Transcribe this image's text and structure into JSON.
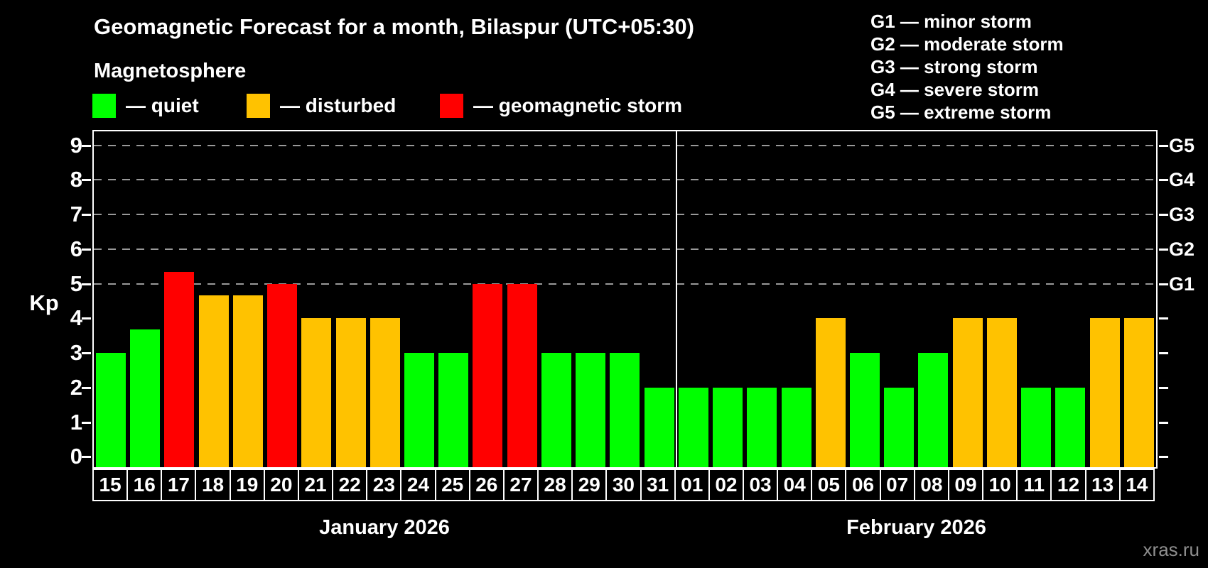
{
  "title": "Geomagnetic Forecast for a month, Bilaspur (UTC+05:30)",
  "subtitle": "Magnetosphere",
  "legend": [
    {
      "status": "quiet",
      "label": "— quiet"
    },
    {
      "status": "disturbed",
      "label": "— disturbed"
    },
    {
      "status": "storm",
      "label": "— geomagnetic storm"
    }
  ],
  "g_scale_legend": [
    "G1 — minor storm",
    "G2 — moderate storm",
    "G3 — strong storm",
    "G4 — severe storm",
    "G5 — extreme storm"
  ],
  "watermark": "xras.ru",
  "chart_data": {
    "type": "bar",
    "ylabel": "Kp",
    "ylim": [
      -0.3,
      9.4
    ],
    "yticks": [
      0,
      1,
      2,
      3,
      4,
      5,
      6,
      7,
      8,
      9
    ],
    "grid_on": true,
    "grid_levels": [
      {
        "kp": 5,
        "label": "G1"
      },
      {
        "kp": 6,
        "label": "G2"
      },
      {
        "kp": 7,
        "label": "G3"
      },
      {
        "kp": 8,
        "label": "G4"
      },
      {
        "kp": 9,
        "label": "G5"
      }
    ],
    "colors": {
      "quiet": "#00ff00",
      "disturbed": "#ffc200",
      "storm": "#ff0000",
      "grid": "#999999",
      "frame": "#ffffff",
      "watermark": "#8f8f8f"
    },
    "months": [
      {
        "label": "January 2026",
        "days": 17
      },
      {
        "label": "February 2026",
        "days": 14
      }
    ],
    "bars": [
      {
        "day": "15",
        "kp": 3,
        "status": "quiet"
      },
      {
        "day": "16",
        "kp": 3.67,
        "status": "quiet"
      },
      {
        "day": "17",
        "kp": 5.33,
        "status": "storm"
      },
      {
        "day": "18",
        "kp": 4.67,
        "status": "disturbed"
      },
      {
        "day": "19",
        "kp": 4.67,
        "status": "disturbed"
      },
      {
        "day": "20",
        "kp": 5,
        "status": "storm"
      },
      {
        "day": "21",
        "kp": 4,
        "status": "disturbed"
      },
      {
        "day": "22",
        "kp": 4,
        "status": "disturbed"
      },
      {
        "day": "23",
        "kp": 4,
        "status": "disturbed"
      },
      {
        "day": "24",
        "kp": 3,
        "status": "quiet"
      },
      {
        "day": "25",
        "kp": 3,
        "status": "quiet"
      },
      {
        "day": "26",
        "kp": 5,
        "status": "storm"
      },
      {
        "day": "27",
        "kp": 5,
        "status": "storm"
      },
      {
        "day": "28",
        "kp": 3,
        "status": "quiet"
      },
      {
        "day": "29",
        "kp": 3,
        "status": "quiet"
      },
      {
        "day": "30",
        "kp": 3,
        "status": "quiet"
      },
      {
        "day": "31",
        "kp": 2,
        "status": "quiet"
      },
      {
        "day": "01",
        "kp": 2,
        "status": "quiet"
      },
      {
        "day": "02",
        "kp": 2,
        "status": "quiet"
      },
      {
        "day": "03",
        "kp": 2,
        "status": "quiet"
      },
      {
        "day": "04",
        "kp": 2,
        "status": "quiet"
      },
      {
        "day": "05",
        "kp": 4,
        "status": "disturbed"
      },
      {
        "day": "06",
        "kp": 3,
        "status": "quiet"
      },
      {
        "day": "07",
        "kp": 2,
        "status": "quiet"
      },
      {
        "day": "08",
        "kp": 3,
        "status": "quiet"
      },
      {
        "day": "09",
        "kp": 4,
        "status": "disturbed"
      },
      {
        "day": "10",
        "kp": 4,
        "status": "disturbed"
      },
      {
        "day": "11",
        "kp": 2,
        "status": "quiet"
      },
      {
        "day": "12",
        "kp": 2,
        "status": "quiet"
      },
      {
        "day": "13",
        "kp": 4,
        "status": "disturbed"
      },
      {
        "day": "14",
        "kp": 4,
        "status": "disturbed"
      }
    ]
  }
}
